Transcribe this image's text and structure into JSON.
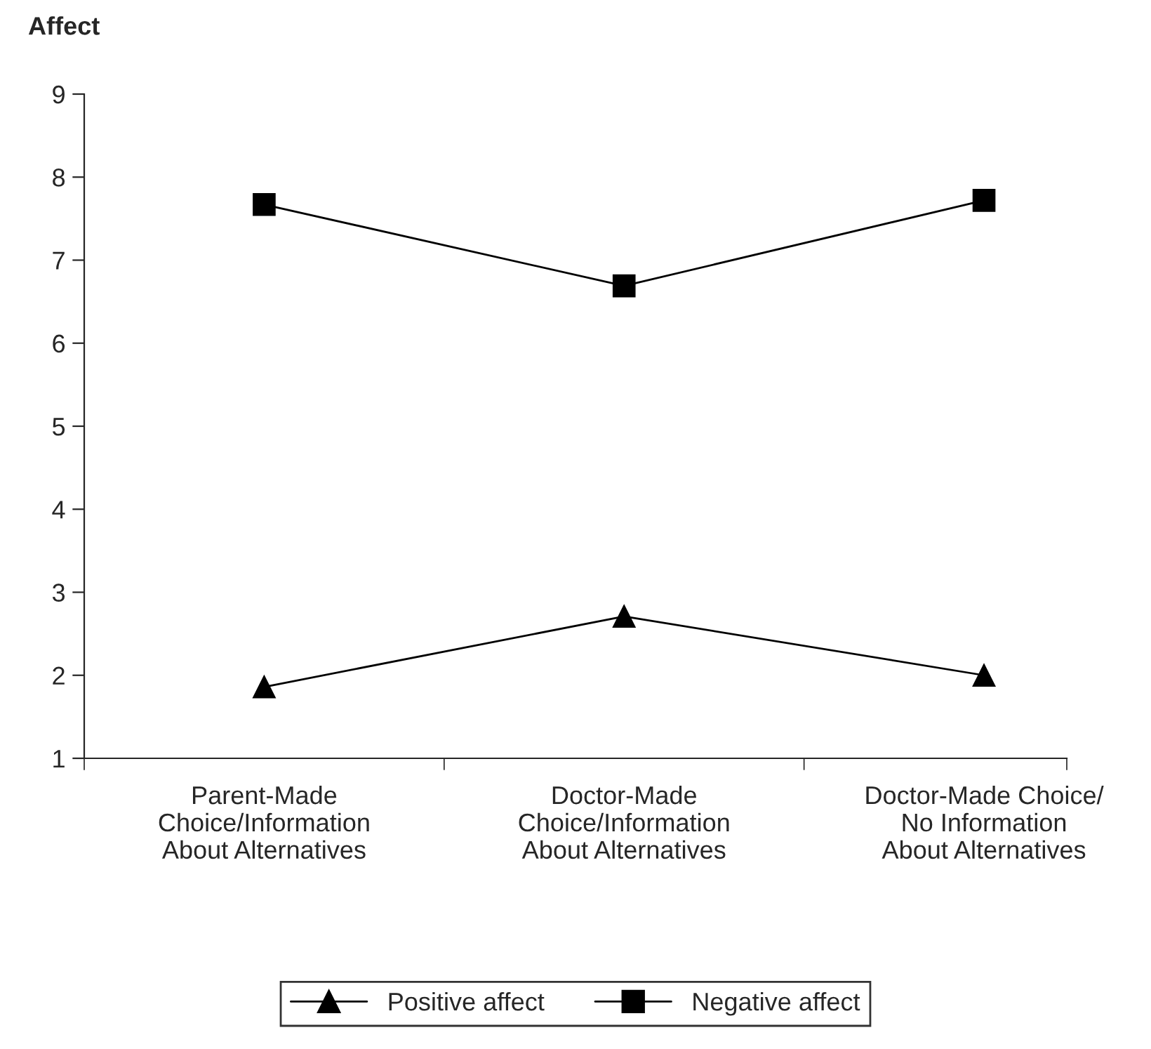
{
  "chart_data": {
    "type": "line",
    "ylabel": "Affect",
    "categories": [
      "Parent-Made\nChoice/Information\nAbout Alternatives",
      "Doctor-Made\nChoice/Information\nAbout Alternatives",
      "Doctor-Made Choice/\nNo Information\nAbout Alternatives"
    ],
    "series": [
      {
        "name": "Positive affect",
        "color": "#000000",
        "marker": "triangle",
        "values": [
          1.86,
          2.71,
          2.0
        ]
      },
      {
        "name": "Negative affect",
        "color": "#000000",
        "marker": "square",
        "values": [
          7.67,
          6.69,
          7.72
        ]
      }
    ],
    "ylim": [
      1,
      9
    ],
    "yticks": [
      1,
      2,
      3,
      4,
      5,
      6,
      7,
      8,
      9
    ],
    "grid": false,
    "legend": "bottom",
    "line_style": "solid"
  }
}
